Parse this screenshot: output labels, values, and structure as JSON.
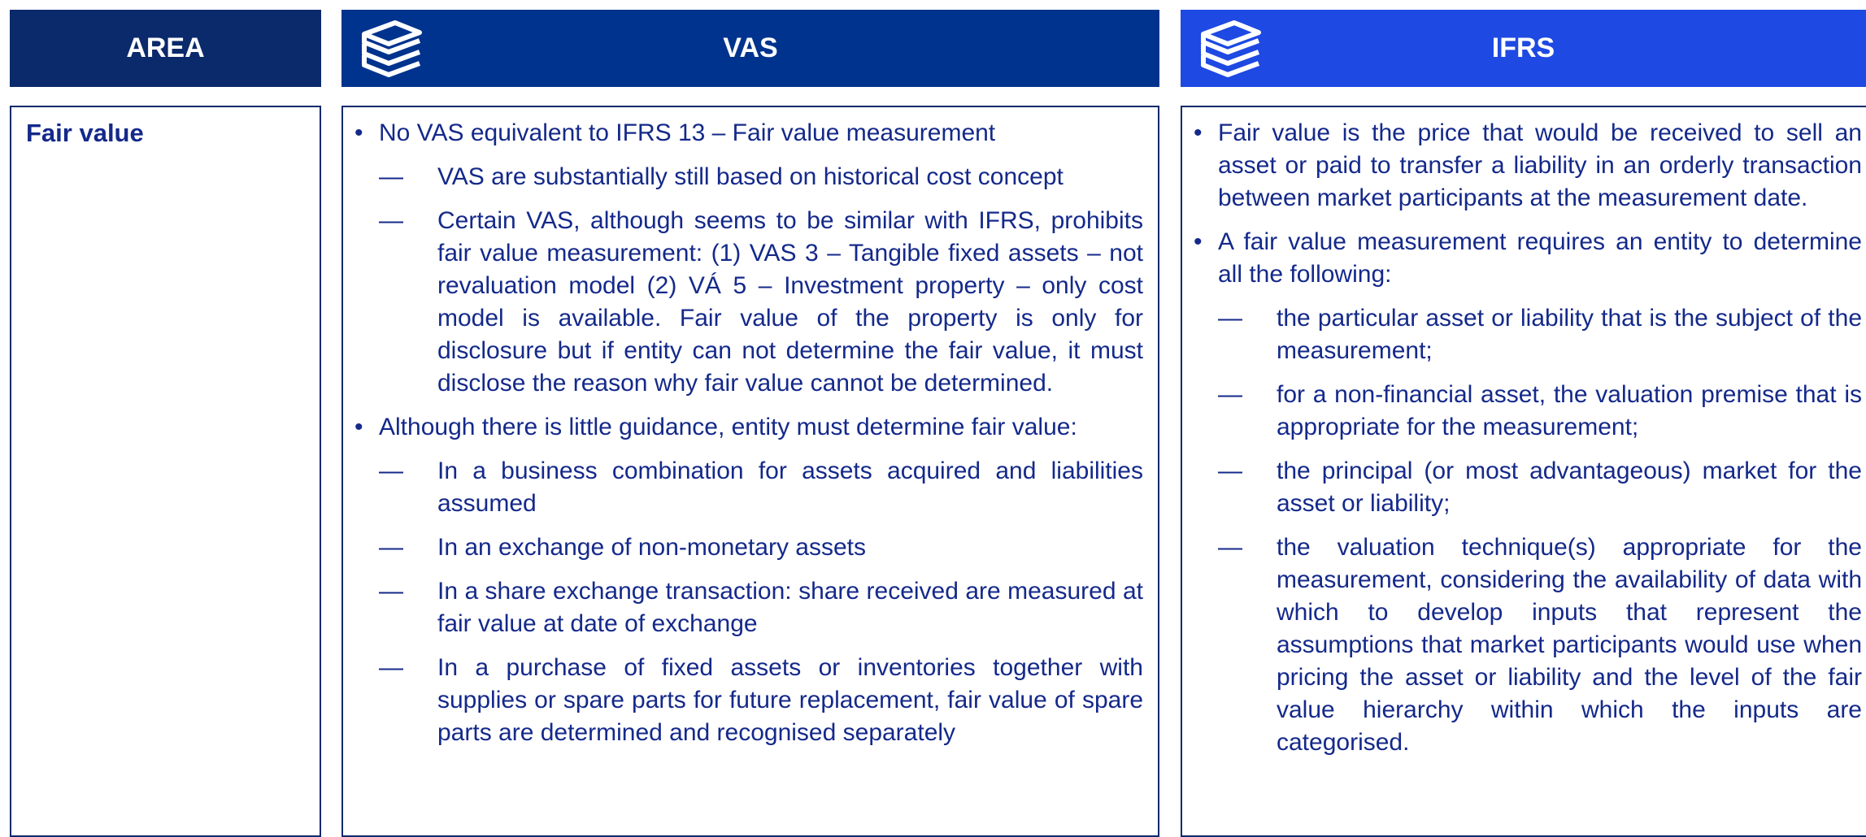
{
  "header": {
    "area": "AREA",
    "vas": "VAS",
    "ifrs": "IFRS"
  },
  "row": {
    "area": "Fair value",
    "vas": [
      {
        "text": "No VAS equivalent to IFRS 13 – Fair value measurement",
        "subs": [
          "VAS are substantially still based on historical cost concept",
          "Certain VAS, although seems to be similar with IFRS, prohibits fair value measurement: (1) VAS 3 – Tangible fixed assets – not revaluation model (2) VÁ 5 – Investment property – only cost model is available. Fair value of the property is only for disclosure but if entity can not determine the fair value, it must disclose the reason why fair value cannot be determined."
        ]
      },
      {
        "text": "Although there is little guidance, entity must determine fair value:",
        "subs": [
          "In a business combination for assets acquired and liabilities assumed",
          "In an exchange of non-monetary assets",
          "In a share exchange transaction: share received are measured at fair value at date of exchange",
          "In a purchase of fixed assets or inventories together with supplies or spare parts for future replacement, fair value of spare parts are determined and recognised separately"
        ]
      }
    ],
    "ifrs": [
      {
        "text": "Fair value is the price that would be received to sell an asset or paid to transfer a liability in an orderly transaction between market participants at the measurement date.",
        "subs": []
      },
      {
        "text": "A fair value measurement requires an entity to determine all the following:",
        "subs": [
          "the particular asset or liability that is the subject of the measurement;",
          "for a non-financial asset, the valuation premise that is appropriate for the measurement;",
          "the principal (or most advantageous) market for the asset or liability;",
          "the valuation technique(s) appropriate for the measurement, considering the availability of data with which to develop inputs that represent the assumptions that market participants would use when pricing the asset or liability and the level of the fair value hierarchy within which the inputs are categorised."
        ]
      }
    ]
  }
}
